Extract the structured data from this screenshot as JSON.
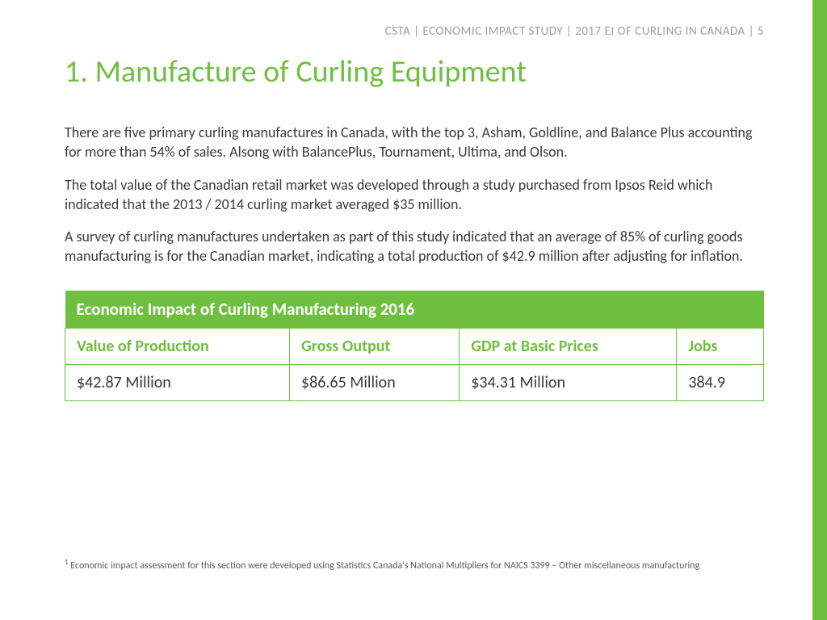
{
  "colors": {
    "accent_green": "#6fbf3f",
    "title_green": "#6fbf3f",
    "header_gray": "#9e9e9e",
    "body_text": "#3a3a3a",
    "table_header_bg": "#6fbf3f",
    "table_header_text": "#ffffff",
    "table_border": "#6fbf3f",
    "page_bg": "#ffffff"
  },
  "header": {
    "running_head": "CSTA | ECONOMIC IMPACT STUDY | 2017 EI OF CURLING IN CANADA | 5"
  },
  "title": "1. Manufacture of Curling Equipment",
  "paragraphs": [
    "There are five primary curling manufactures in Canada, with the top 3, Asham, Goldline, and Balance Plus accounting for more than 54% of sales. Alsong with BalancePlus, Tournament, Ultima, and Olson.",
    "The total value of the Canadian retail market was developed through a study purchased from Ipsos Reid which indicated that the 2013 / 2014 curling market averaged $35 million.",
    "A survey of curling manufactures undertaken as part of this study indicated that an average of 85% of curling goods manufacturing is for the Canadian market, indicating a total production of $42.9 million after adjusting for inflation."
  ],
  "table": {
    "title": "Economic Impact of Curling Manufacturing 2016",
    "columns": [
      "Value of Production",
      "Gross Output",
      "GDP at Basic Prices",
      "Jobs"
    ],
    "rows": [
      [
        "$42.87 Million",
        "$86.65 Million",
        "$34.31 Million",
        "384.9"
      ]
    ]
  },
  "footnote": {
    "marker": "1",
    "text": "Economic impact assessment for this section were developed using Statistics Canada's National Multipliers for NAICS 3399 – Other miscellaneous manufacturing"
  }
}
